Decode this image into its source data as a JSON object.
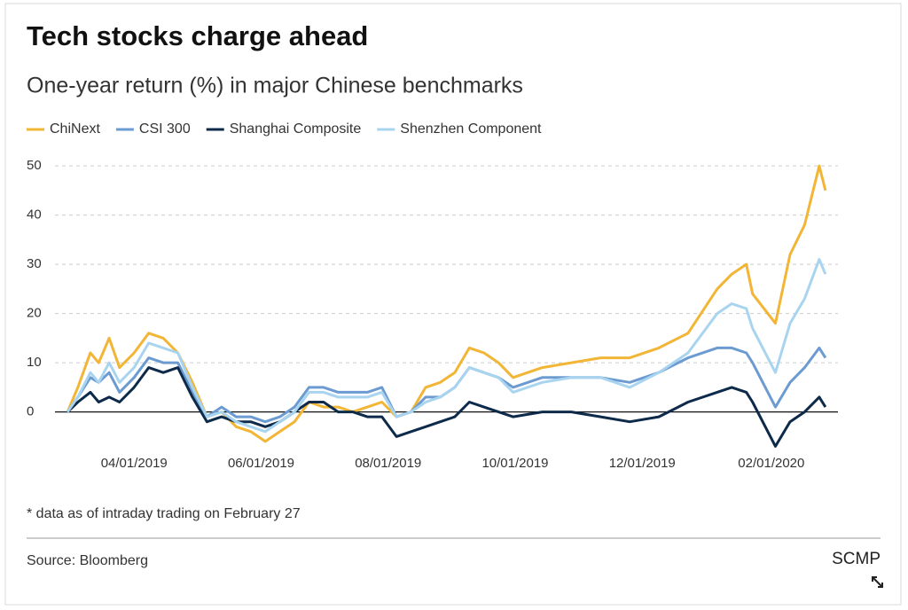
{
  "chart_data": {
    "type": "line",
    "title": "Tech stocks charge ahead",
    "subtitle": "One-year return (%) in major Chinese benchmarks",
    "note": "* data as of intraday trading on February 27",
    "source": "Source: Bloomberg",
    "brand": "SCMP",
    "x": [
      "2019-02-28",
      "2019-03-05",
      "2019-03-11",
      "2019-03-15",
      "2019-03-20",
      "2019-03-25",
      "2019-04-01",
      "2019-04-08",
      "2019-04-15",
      "2019-04-22",
      "2019-04-29",
      "2019-05-06",
      "2019-05-13",
      "2019-05-20",
      "2019-05-27",
      "2019-06-03",
      "2019-06-10",
      "2019-06-17",
      "2019-06-24",
      "2019-07-01",
      "2019-07-08",
      "2019-07-15",
      "2019-07-22",
      "2019-07-29",
      "2019-08-05",
      "2019-08-12",
      "2019-08-19",
      "2019-08-26",
      "2019-09-02",
      "2019-09-09",
      "2019-09-16",
      "2019-09-23",
      "2019-09-30",
      "2019-10-14",
      "2019-10-28",
      "2019-11-11",
      "2019-11-25",
      "2019-12-09",
      "2019-12-23",
      "2020-01-06",
      "2020-01-13",
      "2020-01-20",
      "2020-01-23",
      "2020-02-03",
      "2020-02-10",
      "2020-02-17",
      "2020-02-24",
      "2020-02-27"
    ],
    "series": [
      {
        "name": "ChiNext",
        "color": "#f2b535",
        "values": [
          0,
          5,
          12,
          10,
          15,
          9,
          12,
          16,
          15,
          12,
          6,
          -1,
          0,
          -3,
          -4,
          -6,
          -4,
          -2,
          2,
          1,
          1,
          0,
          1,
          2,
          -1,
          0,
          5,
          6,
          8,
          13,
          12,
          10,
          7,
          9,
          10,
          11,
          11,
          13,
          16,
          25,
          28,
          30,
          24,
          18,
          32,
          38,
          50,
          45
        ]
      },
      {
        "name": "CSI 300",
        "color": "#6b9bd1",
        "values": [
          0,
          3,
          7,
          6,
          8,
          4,
          7,
          11,
          10,
          10,
          4,
          -1,
          1,
          -1,
          -1,
          -2,
          -1,
          1,
          5,
          5,
          4,
          4,
          4,
          5,
          -1,
          0,
          3,
          3,
          5,
          9,
          8,
          7,
          5,
          7,
          7,
          7,
          6,
          8,
          11,
          13,
          13,
          12,
          10,
          1,
          6,
          9,
          13,
          11
        ]
      },
      {
        "name": "Shanghai Composite",
        "color": "#0d2a4a",
        "values": [
          0,
          2,
          4,
          2,
          3,
          2,
          5,
          9,
          8,
          9,
          3,
          -2,
          -1,
          -2,
          -2,
          -3,
          -2,
          0,
          2,
          2,
          0,
          0,
          -1,
          -1,
          -5,
          -4,
          -3,
          -2,
          -1,
          2,
          1,
          0,
          -1,
          0,
          0,
          -1,
          -2,
          -1,
          2,
          4,
          5,
          4,
          2,
          -7,
          -2,
          0,
          3,
          1
        ]
      },
      {
        "name": "Shenzhen Component",
        "color": "#a9d4f0",
        "values": [
          0,
          3,
          8,
          6,
          10,
          6,
          9,
          14,
          13,
          12,
          5,
          -1,
          0,
          -2,
          -3,
          -4,
          -2,
          0,
          4,
          4,
          3,
          3,
          3,
          4,
          -1,
          0,
          2,
          3,
          5,
          9,
          8,
          7,
          4,
          6,
          7,
          7,
          5,
          8,
          12,
          20,
          22,
          21,
          17,
          8,
          18,
          23,
          31,
          28
        ]
      }
    ],
    "xlim": [
      "2019-02-22",
      "2020-03-04"
    ],
    "xticks": [
      {
        "value": "2019-04-01",
        "label": "04/01/2019"
      },
      {
        "value": "2019-06-01",
        "label": "06/01/2019"
      },
      {
        "value": "2019-08-01",
        "label": "08/01/2019"
      },
      {
        "value": "2019-10-01",
        "label": "10/01/2019"
      },
      {
        "value": "2019-12-01",
        "label": "12/01/2019"
      },
      {
        "value": "2020-02-01",
        "label": "02/01/2020"
      }
    ],
    "ylim": [
      -8,
      52
    ],
    "yticks": [
      0,
      10,
      20,
      30,
      40,
      50
    ],
    "grid": true
  }
}
